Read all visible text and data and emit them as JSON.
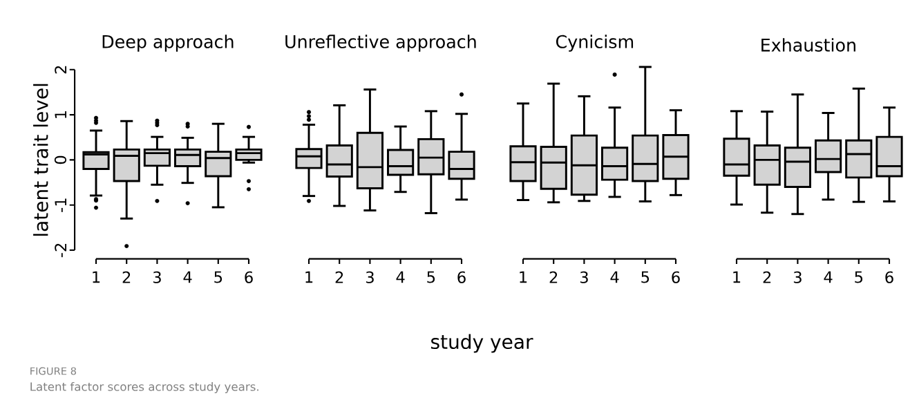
{
  "chart_data": [
    {
      "type": "box",
      "title": "Deep approach",
      "ylabel": "latent trait level",
      "annotations": [
        "FIGURE 8",
        "Latent factor scores across study years."
      ],
      "categories": [
        "1",
        "2",
        "3",
        "4",
        "5",
        "6"
      ],
      "ylim": [
        -2,
        2
      ],
      "yticks": [
        -2,
        -1,
        0,
        1,
        2
      ],
      "series": [
        {
          "color": "#d3d3d3",
          "boxes": [
            {
              "low": -0.79,
              "q1": -0.2,
              "median": 0.12,
              "q3": 0.17,
              "high": 0.65,
              "outliers": [
                0.93,
                0.87,
                0.82,
                -0.87,
                -0.9,
                -1.06
              ]
            },
            {
              "low": -1.3,
              "q1": -0.47,
              "median": 0.09,
              "q3": 0.23,
              "high": 0.86,
              "outliers": [
                -1.91
              ]
            },
            {
              "low": -0.55,
              "q1": -0.13,
              "median": 0.15,
              "q3": 0.23,
              "high": 0.51,
              "outliers": [
                0.87,
                0.82,
                0.77,
                -0.91
              ]
            },
            {
              "low": -0.51,
              "q1": -0.14,
              "median": 0.11,
              "q3": 0.23,
              "high": 0.49,
              "outliers": [
                0.8,
                0.74,
                -0.96
              ]
            },
            {
              "low": -1.05,
              "q1": -0.36,
              "median": 0.04,
              "q3": 0.18,
              "high": 0.8
            },
            {
              "low": -0.06,
              "q1": 0.0,
              "median": 0.15,
              "q3": 0.23,
              "high": 0.51,
              "outliers": [
                0.73,
                -0.47,
                -0.65
              ]
            }
          ]
        }
      ]
    },
    {
      "type": "box",
      "title": "Unreflective approach",
      "tick_labels": "x",
      "xlabel": "study year",
      "categories": [
        "1",
        "2",
        "3",
        "4",
        "5",
        "6"
      ],
      "ylim": [
        -2,
        2
      ],
      "yticks": [
        -2,
        -1,
        0,
        1,
        2
      ],
      "series": [
        {
          "color": "#d3d3d3",
          "boxes": [
            {
              "low": -0.8,
              "q1": -0.18,
              "median": 0.08,
              "q3": 0.24,
              "high": 0.78,
              "outliers": [
                1.06,
                0.97,
                0.89,
                -0.91
              ]
            },
            {
              "low": -1.02,
              "q1": -0.37,
              "median": -0.1,
              "q3": 0.32,
              "high": 1.21
            },
            {
              "low": -1.12,
              "q1": -0.63,
              "median": -0.16,
              "q3": 0.6,
              "high": 1.56
            },
            {
              "low": -0.71,
              "q1": -0.33,
              "median": -0.14,
              "q3": 0.22,
              "high": 0.74
            },
            {
              "low": -1.18,
              "q1": -0.32,
              "median": 0.05,
              "q3": 0.46,
              "high": 1.08
            },
            {
              "low": -0.88,
              "q1": -0.42,
              "median": -0.2,
              "q3": 0.18,
              "high": 1.02,
              "outliers": [
                1.45
              ]
            }
          ]
        }
      ]
    },
    {
      "type": "box",
      "title": "Cynicism",
      "tick_labels": "x",
      "categories": [
        "1",
        "2",
        "3",
        "4",
        "5",
        "6"
      ],
      "ylim": [
        -2,
        2
      ],
      "yticks": [
        -2,
        -1,
        0,
        1,
        2
      ],
      "series": [
        {
          "color": "#d3d3d3",
          "boxes": [
            {
              "low": -0.89,
              "q1": -0.47,
              "median": -0.05,
              "q3": 0.3,
              "high": 1.25
            },
            {
              "low": -0.94,
              "q1": -0.64,
              "median": -0.06,
              "q3": 0.29,
              "high": 1.69
            },
            {
              "low": -0.91,
              "q1": -0.77,
              "median": -0.12,
              "q3": 0.54,
              "high": 1.41
            },
            {
              "low": -0.82,
              "q1": -0.44,
              "median": -0.14,
              "q3": 0.27,
              "high": 1.16,
              "outliers": [
                1.89
              ]
            },
            {
              "low": -0.92,
              "q1": -0.47,
              "median": -0.09,
              "q3": 0.54,
              "high": 2.06
            },
            {
              "low": -0.78,
              "q1": -0.42,
              "median": 0.07,
              "q3": 0.55,
              "high": 1.1
            }
          ]
        }
      ]
    },
    {
      "type": "box",
      "title": "Exhaustion",
      "tick_labels": "x",
      "categories": [
        "1",
        "2",
        "3",
        "4",
        "5",
        "6"
      ],
      "ylim": [
        -2,
        2
      ],
      "yticks": [
        -2,
        -1,
        0,
        1,
        2
      ],
      "series": [
        {
          "color": "#d3d3d3",
          "boxes": [
            {
              "low": -0.99,
              "q1": -0.35,
              "median": -0.1,
              "q3": 0.47,
              "high": 1.08
            },
            {
              "low": -1.17,
              "q1": -0.55,
              "median": 0.0,
              "q3": 0.32,
              "high": 1.07
            },
            {
              "low": -1.2,
              "q1": -0.6,
              "median": -0.04,
              "q3": 0.27,
              "high": 1.45
            },
            {
              "low": -0.88,
              "q1": -0.27,
              "median": 0.02,
              "q3": 0.43,
              "high": 1.04
            },
            {
              "low": -0.93,
              "q1": -0.39,
              "median": 0.13,
              "q3": 0.43,
              "high": 1.58
            },
            {
              "low": -0.92,
              "q1": -0.36,
              "median": -0.14,
              "q3": 0.51,
              "high": 1.16
            }
          ]
        }
      ]
    }
  ]
}
